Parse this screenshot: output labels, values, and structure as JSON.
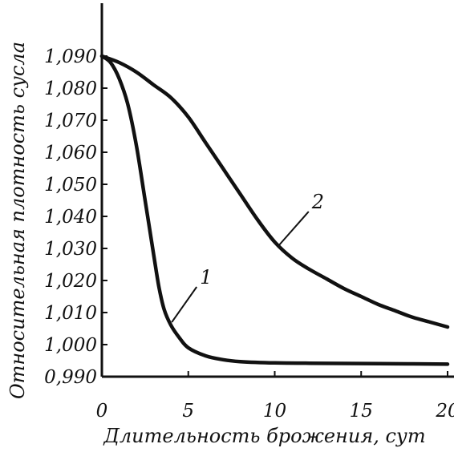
{
  "chart_data": {
    "type": "line",
    "title": "",
    "xlabel": "Длительность брожения, сут",
    "ylabel": "Относительная плотность сусла",
    "xlim": [
      0,
      20
    ],
    "ylim": [
      0.99,
      1.09
    ],
    "grid": false,
    "legend": "none",
    "x_ticks": [
      0,
      5,
      10,
      15,
      20
    ],
    "x_tick_labels": [
      "0",
      "5",
      "10",
      "15",
      "20"
    ],
    "y_ticks": [
      0.99,
      1.0,
      1.01,
      1.02,
      1.03,
      1.04,
      1.05,
      1.06,
      1.07,
      1.08,
      1.09
    ],
    "y_tick_labels": [
      "0,990",
      "1,000",
      "1,010",
      "1,020",
      "1,030",
      "1,040",
      "1,050",
      "1,060",
      "1,070",
      "1,080",
      "1,090"
    ],
    "series": [
      {
        "name": "1",
        "x": [
          0,
          0.5,
          1.0,
          1.5,
          2.0,
          2.5,
          3.0,
          3.3,
          3.6,
          4.0,
          4.5,
          5.0,
          6.0,
          7.0,
          8.0,
          10.0,
          12.0,
          15.0,
          18.0,
          20.0
        ],
        "y": [
          1.09,
          1.088,
          1.083,
          1.075,
          1.062,
          1.045,
          1.028,
          1.018,
          1.011,
          1.006,
          1.002,
          0.999,
          0.9965,
          0.9953,
          0.9947,
          0.9943,
          0.9942,
          0.9941,
          0.994,
          0.9939
        ]
      },
      {
        "name": "2",
        "x": [
          0,
          1,
          2,
          3,
          4,
          5,
          6,
          7,
          8,
          9,
          10,
          11,
          12,
          13,
          14,
          15,
          16,
          17,
          18,
          19,
          20
        ],
        "y": [
          1.09,
          1.088,
          1.085,
          1.081,
          1.077,
          1.071,
          1.063,
          1.055,
          1.047,
          1.039,
          1.032,
          1.027,
          1.0235,
          1.0205,
          1.0175,
          1.015,
          1.0125,
          1.0105,
          1.0085,
          1.007,
          1.0055
        ]
      }
    ]
  }
}
